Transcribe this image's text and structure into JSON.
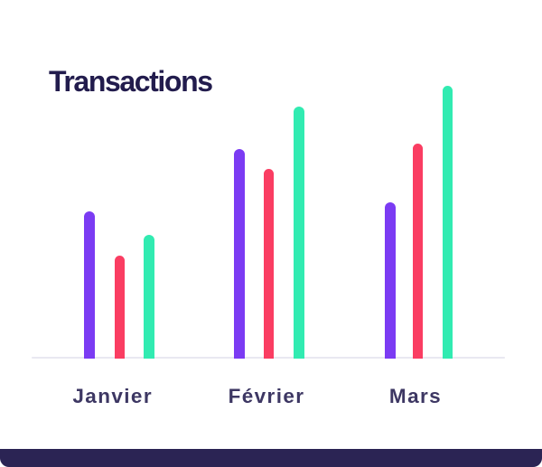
{
  "chart": {
    "title": "Transactions"
  },
  "chart_data": {
    "type": "bar",
    "title": "Transactions",
    "categories": [
      "Janvier",
      "Février",
      "Mars"
    ],
    "series": [
      {
        "name": "purple",
        "color": "#7b3bf3",
        "values": [
          163,
          232,
          173
        ]
      },
      {
        "name": "pink",
        "color": "#fa3d62",
        "values": [
          114,
          210,
          238
        ]
      },
      {
        "name": "green",
        "color": "#31ebb1",
        "values": [
          137,
          279,
          302
        ]
      }
    ],
    "xlabel": "",
    "ylabel": "",
    "ylim": [
      0,
      310
    ],
    "grid": false,
    "legend": false,
    "title_color": "#221c4d",
    "label_color": "#3d3763",
    "baseline_color": "#e9e8f1",
    "footer_color": "#2b2454"
  }
}
